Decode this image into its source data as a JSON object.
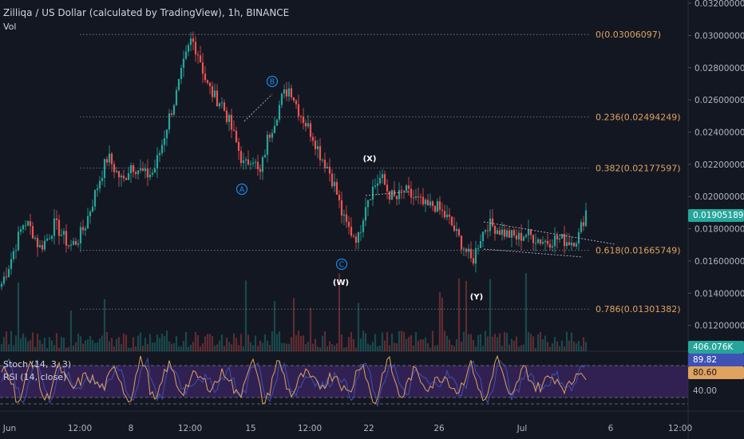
{
  "header": {
    "title": "Zilliqa / US Dollar (calculated by TradingView), 1h, BINANCE",
    "vol_label": "Vol"
  },
  "indicators": {
    "stoch_label": "Stoch (14, 3, 3)",
    "rsi_label": "RSI (14, close)",
    "stoch_value": "89.82",
    "rsi_value": "80.60",
    "level_label": "40.00"
  },
  "price_badge": "0.01905189",
  "volume_badge": "406.076K",
  "colors": {
    "background": "#131722",
    "up": "#26a69a",
    "down": "#ef5350",
    "fib": "#e0a35f",
    "wave": "#1e88e5",
    "price_badge": "#26a69a",
    "osc_band": "#4a2a7a",
    "stoch": "#3f51b5",
    "rsi": "#e0a35f"
  },
  "chart_data": {
    "type": "candlestick",
    "ylim": [
      0.0104,
      0.0322
    ],
    "y_ticks": [
      "0.03200000",
      "0.03000000",
      "0.02800000",
      "0.02600000",
      "0.02400000",
      "0.02200000",
      "0.02000000",
      "0.01800000",
      "0.01600000",
      "0.01400000",
      "0.01200000"
    ],
    "x_ticks": [
      "Jun",
      "12:00",
      "8",
      "12:00",
      "15",
      "12:00",
      "22",
      "26",
      "Jul",
      "6",
      "12:00"
    ],
    "fib_levels": [
      {
        "label": "0(0.03006097)",
        "value": 0.03006097
      },
      {
        "label": "0.236(0.02494249)",
        "value": 0.02494249
      },
      {
        "label": "0.382(0.02177597)",
        "value": 0.02177597
      },
      {
        "label": "0.618(0.01665749)",
        "value": 0.01665749
      },
      {
        "label": "0.786(0.01301382)",
        "value": 0.01301382
      }
    ],
    "wave_labels": [
      {
        "label": "A",
        "circled": true
      },
      {
        "label": "B",
        "circled": true
      },
      {
        "label": "C",
        "circled": true
      },
      {
        "label": "(W)",
        "circled": false
      },
      {
        "label": "(X)",
        "circled": false
      },
      {
        "label": "(Y)",
        "circled": false
      }
    ],
    "price_path": [
      0.0146,
      0.0158,
      0.0172,
      0.0185,
      0.0179,
      0.0168,
      0.0174,
      0.0183,
      0.0176,
      0.0169,
      0.0173,
      0.0182,
      0.0197,
      0.0212,
      0.0225,
      0.0216,
      0.0209,
      0.022,
      0.0217,
      0.0213,
      0.0215,
      0.023,
      0.0248,
      0.0263,
      0.0282,
      0.0298,
      0.0288,
      0.027,
      0.0262,
      0.0258,
      0.0246,
      0.0232,
      0.0218,
      0.0226,
      0.0212,
      0.0235,
      0.0248,
      0.0262,
      0.0268,
      0.0255,
      0.0246,
      0.0238,
      0.0226,
      0.0218,
      0.0205,
      0.0186,
      0.0178,
      0.0174,
      0.0197,
      0.0206,
      0.0212,
      0.0202,
      0.0198,
      0.0204,
      0.02,
      0.0197,
      0.0193,
      0.0195,
      0.019,
      0.0185,
      0.0176,
      0.0168,
      0.0159,
      0.0174,
      0.0183,
      0.0181,
      0.0178,
      0.0176,
      0.0174,
      0.0177,
      0.0175,
      0.0173,
      0.0172,
      0.0174,
      0.0173,
      0.0172,
      0.0175,
      0.0191
    ]
  }
}
